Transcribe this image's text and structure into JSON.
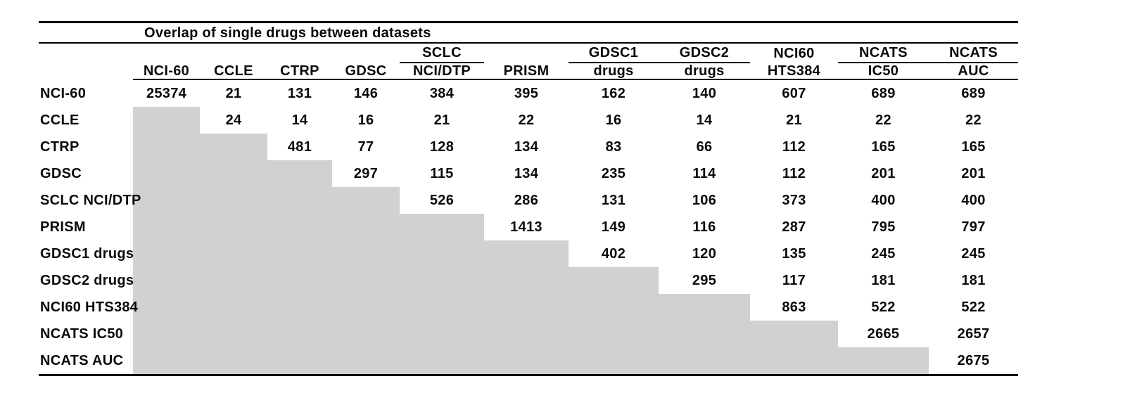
{
  "colors": {
    "shade": "#d1d1d1",
    "rule": "#000000",
    "text": "#0a0a0a"
  },
  "chart_data": {
    "type": "table",
    "title": "Overlap of single drugs between datasets",
    "shading": "lower-triangle-gray-staircase",
    "header_row1": [
      {
        "label": "",
        "underline": false
      },
      {
        "label": "",
        "underline": false
      },
      {
        "label": "",
        "underline": false
      },
      {
        "label": "",
        "underline": false
      },
      {
        "label": "",
        "underline": false
      },
      {
        "label": "SCLC",
        "underline": true
      },
      {
        "label": "",
        "underline": false
      },
      {
        "label": "GDSC1",
        "underline": true
      },
      {
        "label": "GDSC2",
        "underline": true
      },
      {
        "label": "NCI60",
        "underline": false
      },
      {
        "label": "NCATS",
        "underline": true
      },
      {
        "label": "NCATS",
        "underline": true
      }
    ],
    "header_row2": [
      "",
      "NCI-60",
      "CCLE",
      "CTRP",
      "GDSC",
      "NCI/DTP",
      "PRISM",
      "drugs",
      "drugs",
      "HTS384",
      "IC50",
      "AUC"
    ],
    "full_column_names": [
      "NCI-60",
      "CCLE",
      "CTRP",
      "GDSC",
      "SCLC NCI/DTP",
      "PRISM",
      "GDSC1 drugs",
      "GDSC2 drugs",
      "NCI60 HTS384",
      "NCATS IC50",
      "NCATS AUC"
    ],
    "row_labels": [
      "NCI-60",
      "CCLE",
      "CTRP",
      "GDSC",
      "SCLC NCI/DTP",
      "PRISM",
      "GDSC1 drugs",
      "GDSC2 drugs",
      "NCI60 HTS384",
      "NCATS IC50",
      "NCATS AUC"
    ],
    "matrix": [
      [
        25374,
        21,
        131,
        146,
        384,
        395,
        162,
        140,
        607,
        689,
        689
      ],
      [
        null,
        24,
        14,
        16,
        21,
        22,
        16,
        14,
        21,
        22,
        22
      ],
      [
        null,
        null,
        481,
        77,
        128,
        134,
        83,
        66,
        112,
        165,
        165
      ],
      [
        null,
        null,
        null,
        297,
        115,
        134,
        235,
        114,
        112,
        201,
        201
      ],
      [
        null,
        null,
        null,
        null,
        526,
        286,
        131,
        106,
        373,
        400,
        400
      ],
      [
        null,
        null,
        null,
        null,
        null,
        1413,
        149,
        116,
        287,
        795,
        797
      ],
      [
        null,
        null,
        null,
        null,
        null,
        null,
        402,
        120,
        135,
        245,
        245
      ],
      [
        null,
        null,
        null,
        null,
        null,
        null,
        null,
        295,
        117,
        181,
        181
      ],
      [
        null,
        null,
        null,
        null,
        null,
        null,
        null,
        null,
        863,
        522,
        522
      ],
      [
        null,
        null,
        null,
        null,
        null,
        null,
        null,
        null,
        null,
        2665,
        2657
      ],
      [
        null,
        null,
        null,
        null,
        null,
        null,
        null,
        null,
        null,
        null,
        2675
      ]
    ]
  }
}
